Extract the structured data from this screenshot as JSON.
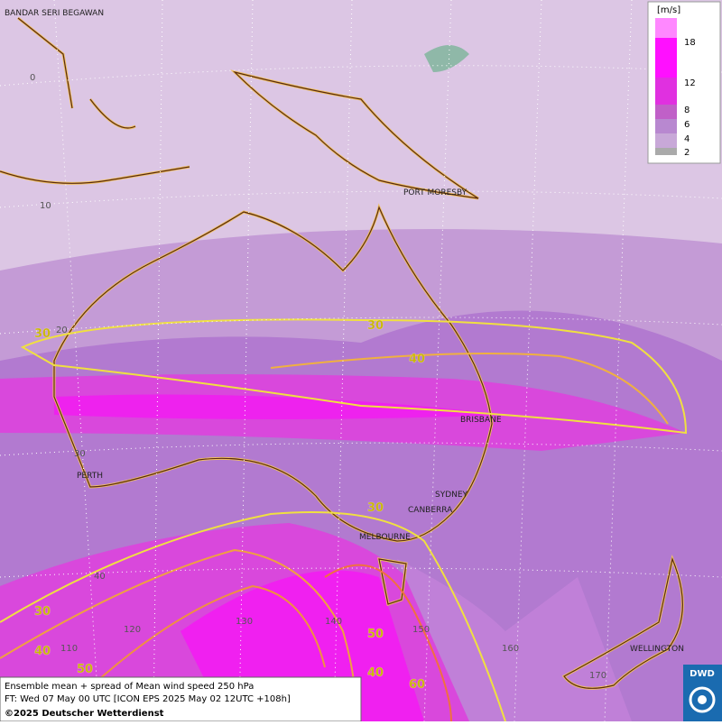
{
  "map": {
    "cities": [
      "BANDAR SERI BEGAWAN",
      "PORT MORESBY",
      "BRISBANE",
      "PERTH",
      "SYDNEY",
      "CANBERRA",
      "MELBOURNE",
      "WELLINGTON"
    ],
    "grid_labels": [
      "0",
      "10",
      "20",
      "30",
      "40",
      "110",
      "120",
      "130",
      "140",
      "150",
      "160",
      "170"
    ],
    "contour_labels": [
      30,
      30,
      30,
      30,
      40,
      40,
      40,
      50,
      50,
      60
    ],
    "legend": {
      "title": "[m/s]",
      "ticks": [
        18,
        12,
        8,
        6,
        4,
        2
      ]
    },
    "footer": {
      "line1": "Ensemble mean + spread of Mean wind speed 250 hPa",
      "line2": "FT: Wed 07 May 00 UTC [ICON EPS 2025 May 02 12UTC +108h]",
      "line3": "©2025 Deutscher Wetterdienst"
    },
    "logo": "DWD"
  }
}
